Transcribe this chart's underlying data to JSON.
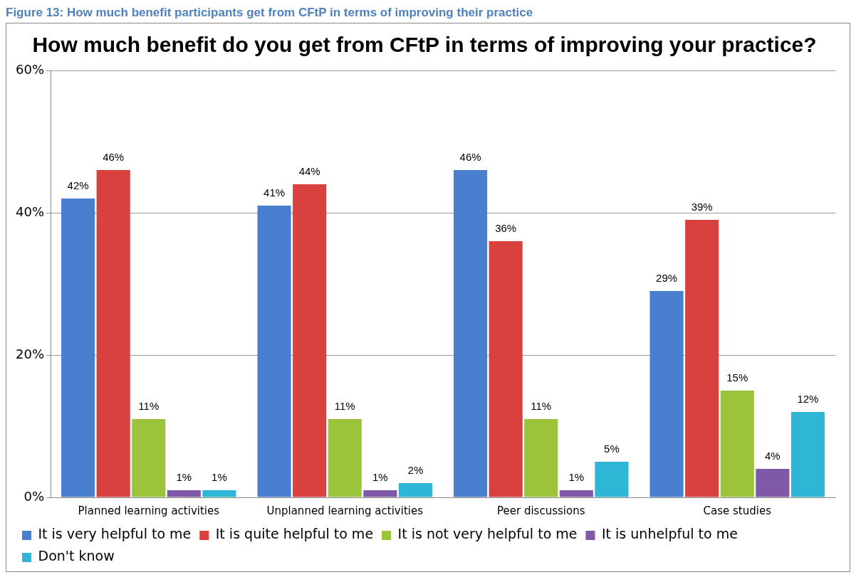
{
  "chart_data": {
    "type": "bar",
    "title": "How much benefit do you get from CFtP in terms of improving your practice?",
    "annotations": [
      "Figure 13: How much benefit participants get from CFtP in terms of improving their practice"
    ],
    "categories": [
      "Planned learning activities",
      "Unplanned learning activities",
      "Peer discussions",
      "Case studies"
    ],
    "series": [
      {
        "name": "It is very helpful to me",
        "color": "#4a7fd0",
        "values": [
          42,
          41,
          46,
          29
        ],
        "value_labels": [
          "42%",
          "41%",
          "46%",
          "29%"
        ]
      },
      {
        "name": "It is quite helpful to me",
        "color": "#d9413e",
        "values": [
          46,
          44,
          36,
          39
        ],
        "value_labels": [
          "46%",
          "44%",
          "36%",
          "39%"
        ]
      },
      {
        "name": "It is not very helpful to me",
        "color": "#9bc43a",
        "values": [
          11,
          11,
          11,
          15
        ],
        "value_labels": [
          "11%",
          "11%",
          "11%",
          "15%"
        ]
      },
      {
        "name": "It is unhelpful to me",
        "color": "#8058a8",
        "values": [
          1,
          1,
          1,
          4
        ],
        "value_labels": [
          "1%",
          "1%",
          "1%",
          "4%"
        ]
      },
      {
        "name": "Don't know",
        "color": "#2fb6d6",
        "values": [
          1,
          2,
          5,
          12
        ],
        "value_labels": [
          "1%",
          "2%",
          "5%",
          "12%"
        ]
      }
    ],
    "ylim": [
      0,
      60
    ],
    "yticks": [
      {
        "value": 0,
        "label": "0%"
      },
      {
        "value": 20,
        "label": "20%"
      },
      {
        "value": 40,
        "label": "40%"
      },
      {
        "value": 60,
        "label": "60%"
      }
    ],
    "grid": "y",
    "legend": "bottom"
  }
}
